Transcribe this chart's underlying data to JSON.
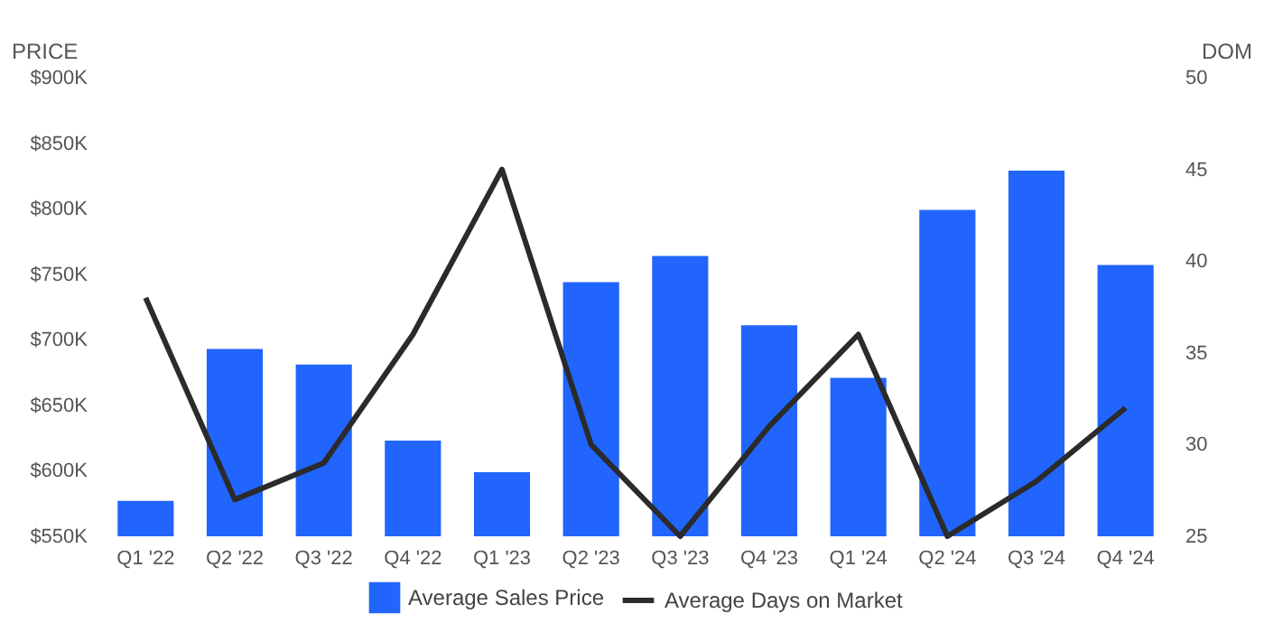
{
  "chart_data": {
    "type": "bar",
    "categories": [
      "Q1 '22",
      "Q2 '22",
      "Q3 '22",
      "Q4 '22",
      "Q1 '23",
      "Q2 '23",
      "Q3 '23",
      "Q4 '23",
      "Q1 '24",
      "Q2 '24",
      "Q3 '24",
      "Q4 '24"
    ],
    "series": [
      {
        "name": "Average Sales Price",
        "color": "#2165fc",
        "values": [
          577000,
          693000,
          681000,
          623000,
          599000,
          744000,
          764000,
          711000,
          671000,
          799000,
          829000,
          757000
        ]
      },
      {
        "name": "Average Days on Market",
        "type": "line",
        "axis": "y2",
        "color": "#2b2b2b",
        "values": [
          38,
          27,
          29,
          36,
          45,
          30,
          25,
          31,
          36,
          25,
          28,
          32
        ]
      }
    ],
    "ylabel": "PRICE",
    "y2label": "DOM",
    "ylim": [
      550000,
      900000
    ],
    "yticks": [
      {
        "value": 550000,
        "label": "$550K"
      },
      {
        "value": 600000,
        "label": "$600K"
      },
      {
        "value": 650000,
        "label": "$650K"
      },
      {
        "value": 700000,
        "label": "$700K"
      },
      {
        "value": 750000,
        "label": "$750K"
      },
      {
        "value": 800000,
        "label": "$800K"
      },
      {
        "value": 850000,
        "label": "$850K"
      },
      {
        "value": 900000,
        "label": "$900K"
      }
    ],
    "y2lim": [
      25,
      50
    ],
    "y2ticks": [
      25,
      30,
      35,
      40,
      45,
      50
    ],
    "legend": "bottom",
    "grid": false,
    "marker": "none",
    "line_style": "solid"
  }
}
